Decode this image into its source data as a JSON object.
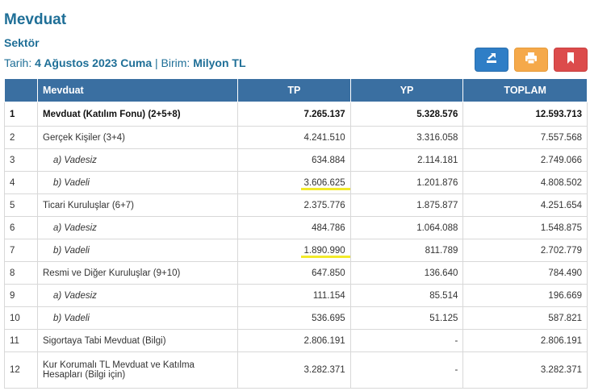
{
  "header": {
    "title": "Mevduat",
    "subtitle": "Sektör",
    "date_prefix": "Tarih:",
    "date_value": "4 Ağustos 2023 Cuma",
    "unit_prefix": "| Birim:",
    "unit_value": "Milyon TL"
  },
  "toolbar": {
    "export_icon": "export-icon",
    "print_icon": "printer-icon",
    "bookmark_icon": "bookmark-icon",
    "colors": {
      "export": "#2f7ec6",
      "print": "#f5a94a",
      "bookmark": "#dc4b4b"
    }
  },
  "table": {
    "columns": [
      "",
      "Mevduat",
      "TP",
      "YP",
      "TOPLAM"
    ],
    "rows": [
      {
        "no": "1",
        "name": "Mevduat (Katılım Fonu) (2+5+8)",
        "tp": "7.265.137",
        "yp": "5.328.576",
        "toplam": "12.593.713"
      },
      {
        "no": "2",
        "name": "Gerçek Kişiler (3+4)",
        "tp": "4.241.510",
        "yp": "3.316.058",
        "toplam": "7.557.568"
      },
      {
        "no": "3",
        "name": "a) Vadesiz",
        "tp": "634.884",
        "yp": "2.114.181",
        "toplam": "2.749.066"
      },
      {
        "no": "4",
        "name": "b) Vadeli",
        "tp": "3.606.625",
        "yp": "1.201.876",
        "toplam": "4.808.502"
      },
      {
        "no": "5",
        "name": "Ticari Kuruluşlar (6+7)",
        "tp": "2.375.776",
        "yp": "1.875.877",
        "toplam": "4.251.654"
      },
      {
        "no": "6",
        "name": "a) Vadesiz",
        "tp": "484.786",
        "yp": "1.064.088",
        "toplam": "1.548.875"
      },
      {
        "no": "7",
        "name": "b) Vadeli",
        "tp": "1.890.990",
        "yp": "811.789",
        "toplam": "2.702.779"
      },
      {
        "no": "8",
        "name": "Resmi ve Diğer Kuruluşlar (9+10)",
        "tp": "647.850",
        "yp": "136.640",
        "toplam": "784.490"
      },
      {
        "no": "9",
        "name": "a) Vadesiz",
        "tp": "111.154",
        "yp": "85.514",
        "toplam": "196.669"
      },
      {
        "no": "10",
        "name": "b) Vadeli",
        "tp": "536.695",
        "yp": "51.125",
        "toplam": "587.821"
      },
      {
        "no": "11",
        "name": "Sigortaya Tabi Mevduat (Bilgi)",
        "tp": "2.806.191",
        "yp": "-",
        "toplam": "2.806.191"
      },
      {
        "no": "12",
        "name": "Kur Korumalı TL Mevduat ve Katılma Hesapları (Bilgi için)",
        "tp": "3.282.371",
        "yp": "-",
        "toplam": "3.282.371"
      }
    ]
  }
}
